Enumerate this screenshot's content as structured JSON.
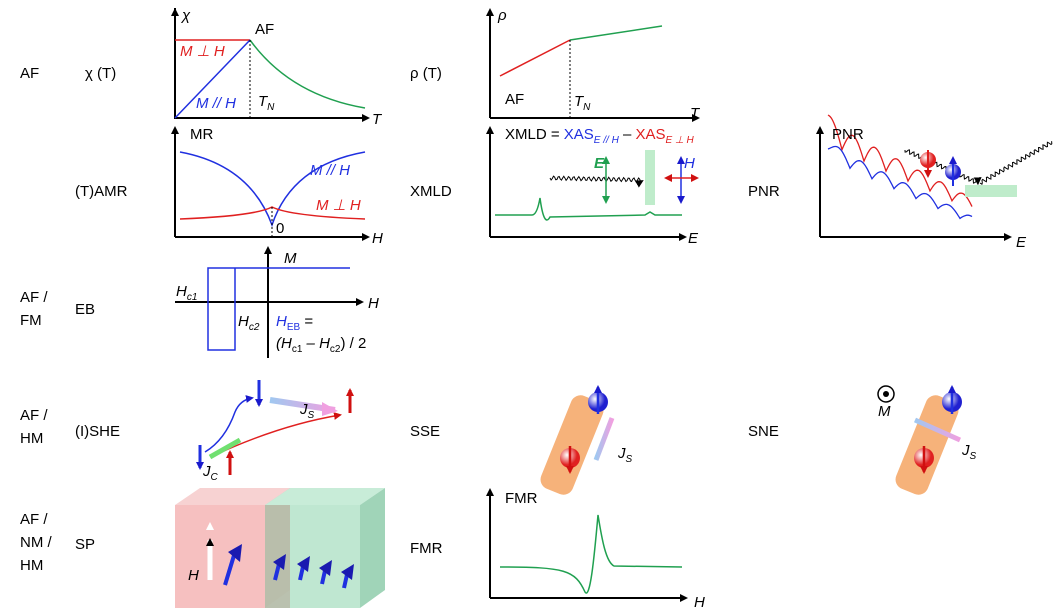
{
  "systems": [
    [
      "AF"
    ],
    [
      "AF /",
      "FM"
    ],
    [
      "AF /",
      "HM"
    ],
    [
      "AF /",
      "NM /",
      "HM"
    ]
  ],
  "methods": {
    "chi": "χ (T)",
    "rho": "ρ (T)",
    "amr": "(T)AMR",
    "xmld": "XMLD",
    "pnr": "PNR",
    "eb": "EB",
    "she": "(I)SHE",
    "sse": "SSE",
    "sne": "SNE",
    "sp": "SP",
    "fmr": "FMR"
  },
  "chi": {
    "y_axis": "χ",
    "x_axis": "T",
    "phase": "AF",
    "perp": "M ⊥ H",
    "para": "M // H",
    "tn": [
      "T",
      "N"
    ]
  },
  "rho": {
    "y_axis": "ρ",
    "x_axis": "T",
    "phase": "AF",
    "tn": [
      "T",
      "N"
    ]
  },
  "amr": {
    "y_axis": "MR",
    "x_axis": "H",
    "zero": "0",
    "para": "M // H",
    "perp": "M ⊥ H"
  },
  "xmld": {
    "title": [
      "XMLD = ",
      "XAS",
      "E // H",
      " – ",
      "XAS",
      "E ⊥ H"
    ],
    "x_axis": "E",
    "e_field": "E",
    "h_field": "H"
  },
  "pnr": {
    "y_axis": "PNR",
    "x_axis": "E"
  },
  "eb": {
    "y_axis": "M",
    "x_axis": "H",
    "hc1": [
      "H",
      "c1"
    ],
    "hc2": [
      "H",
      "c2"
    ],
    "heb": [
      "H",
      "EB",
      " ="
    ],
    "formula": [
      "(H",
      "c1",
      " – H",
      "c2",
      ") / 2"
    ]
  },
  "she": {
    "js": [
      "J",
      "S"
    ],
    "jc": [
      "J",
      "C"
    ]
  },
  "sse": {
    "js": [
      "J",
      "S"
    ]
  },
  "sne": {
    "m": "M",
    "js": [
      "J",
      "S"
    ]
  },
  "sp": {
    "h": "H"
  },
  "fmr": {
    "y_axis": "FMR",
    "x_axis": "H"
  }
}
